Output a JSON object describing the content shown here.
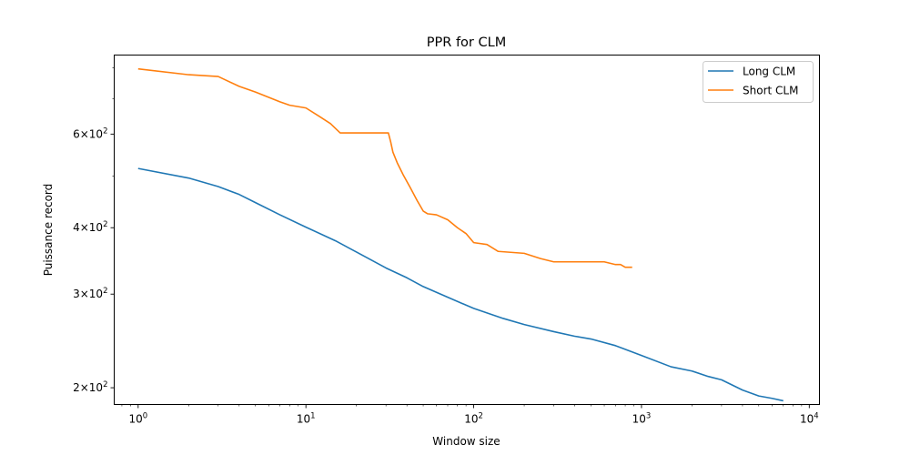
{
  "chart_data": {
    "type": "line",
    "title": "PPR for CLM",
    "xlabel": "Window size",
    "ylabel": "Puissance record",
    "xscale": "log",
    "yscale": "log",
    "xlim": [
      0.72,
      11500
    ],
    "ylim": [
      186,
      845
    ],
    "grid": false,
    "legend_position": "top-right",
    "x_ticks": [
      {
        "value": 1,
        "base": "10",
        "exp": "0"
      },
      {
        "value": 10,
        "base": "10",
        "exp": "1"
      },
      {
        "value": 100,
        "base": "10",
        "exp": "2"
      },
      {
        "value": 1000,
        "base": "10",
        "exp": "3"
      },
      {
        "value": 10000,
        "base": "10",
        "exp": "4"
      }
    ],
    "y_ticks": [
      {
        "value": 200,
        "mant": "2",
        "base": "10",
        "exp": "2"
      },
      {
        "value": 300,
        "mant": "3",
        "base": "10",
        "exp": "2"
      },
      {
        "value": 400,
        "mant": "4",
        "base": "10",
        "exp": "2"
      },
      {
        "value": 600,
        "mant": "6",
        "base": "10",
        "exp": "2"
      }
    ],
    "y_minor_ticks": [
      500,
      700,
      800
    ],
    "series": [
      {
        "name": "Long CLM",
        "color": "#1f77b4",
        "points": [
          [
            1,
            517
          ],
          [
            2,
            496
          ],
          [
            3,
            478
          ],
          [
            4,
            462
          ],
          [
            5,
            446
          ],
          [
            7,
            423
          ],
          [
            10,
            401
          ],
          [
            15,
            378
          ],
          [
            20,
            360
          ],
          [
            30,
            336
          ],
          [
            40,
            322
          ],
          [
            50,
            310
          ],
          [
            70,
            296
          ],
          [
            100,
            282
          ],
          [
            150,
            270
          ],
          [
            200,
            263
          ],
          [
            300,
            255
          ],
          [
            400,
            250
          ],
          [
            500,
            247
          ],
          [
            700,
            240
          ],
          [
            1000,
            230
          ],
          [
            1500,
            219
          ],
          [
            2000,
            215
          ],
          [
            2500,
            210
          ],
          [
            3000,
            207
          ],
          [
            4000,
            198
          ],
          [
            5000,
            193
          ],
          [
            6000,
            191
          ],
          [
            7000,
            189
          ]
        ]
      },
      {
        "name": "Short CLM",
        "color": "#ff7f0e",
        "points": [
          [
            1,
            796
          ],
          [
            2,
            776
          ],
          [
            3,
            770
          ],
          [
            4,
            738
          ],
          [
            5,
            720
          ],
          [
            7,
            690
          ],
          [
            8,
            680
          ],
          [
            10,
            672
          ],
          [
            12,
            648
          ],
          [
            14,
            628
          ],
          [
            16,
            603
          ],
          [
            20,
            603
          ],
          [
            31,
            603
          ],
          [
            32,
            580
          ],
          [
            33,
            555
          ],
          [
            35,
            530
          ],
          [
            38,
            503
          ],
          [
            42,
            475
          ],
          [
            46,
            450
          ],
          [
            50,
            430
          ],
          [
            53,
            425
          ],
          [
            60,
            423
          ],
          [
            70,
            414
          ],
          [
            80,
            400
          ],
          [
            90,
            390
          ],
          [
            100,
            375
          ],
          [
            120,
            372
          ],
          [
            140,
            361
          ],
          [
            200,
            358
          ],
          [
            250,
            350
          ],
          [
            300,
            345
          ],
          [
            600,
            345
          ],
          [
            700,
            341
          ],
          [
            750,
            341
          ],
          [
            800,
            337
          ],
          [
            880,
            337
          ]
        ]
      }
    ]
  }
}
